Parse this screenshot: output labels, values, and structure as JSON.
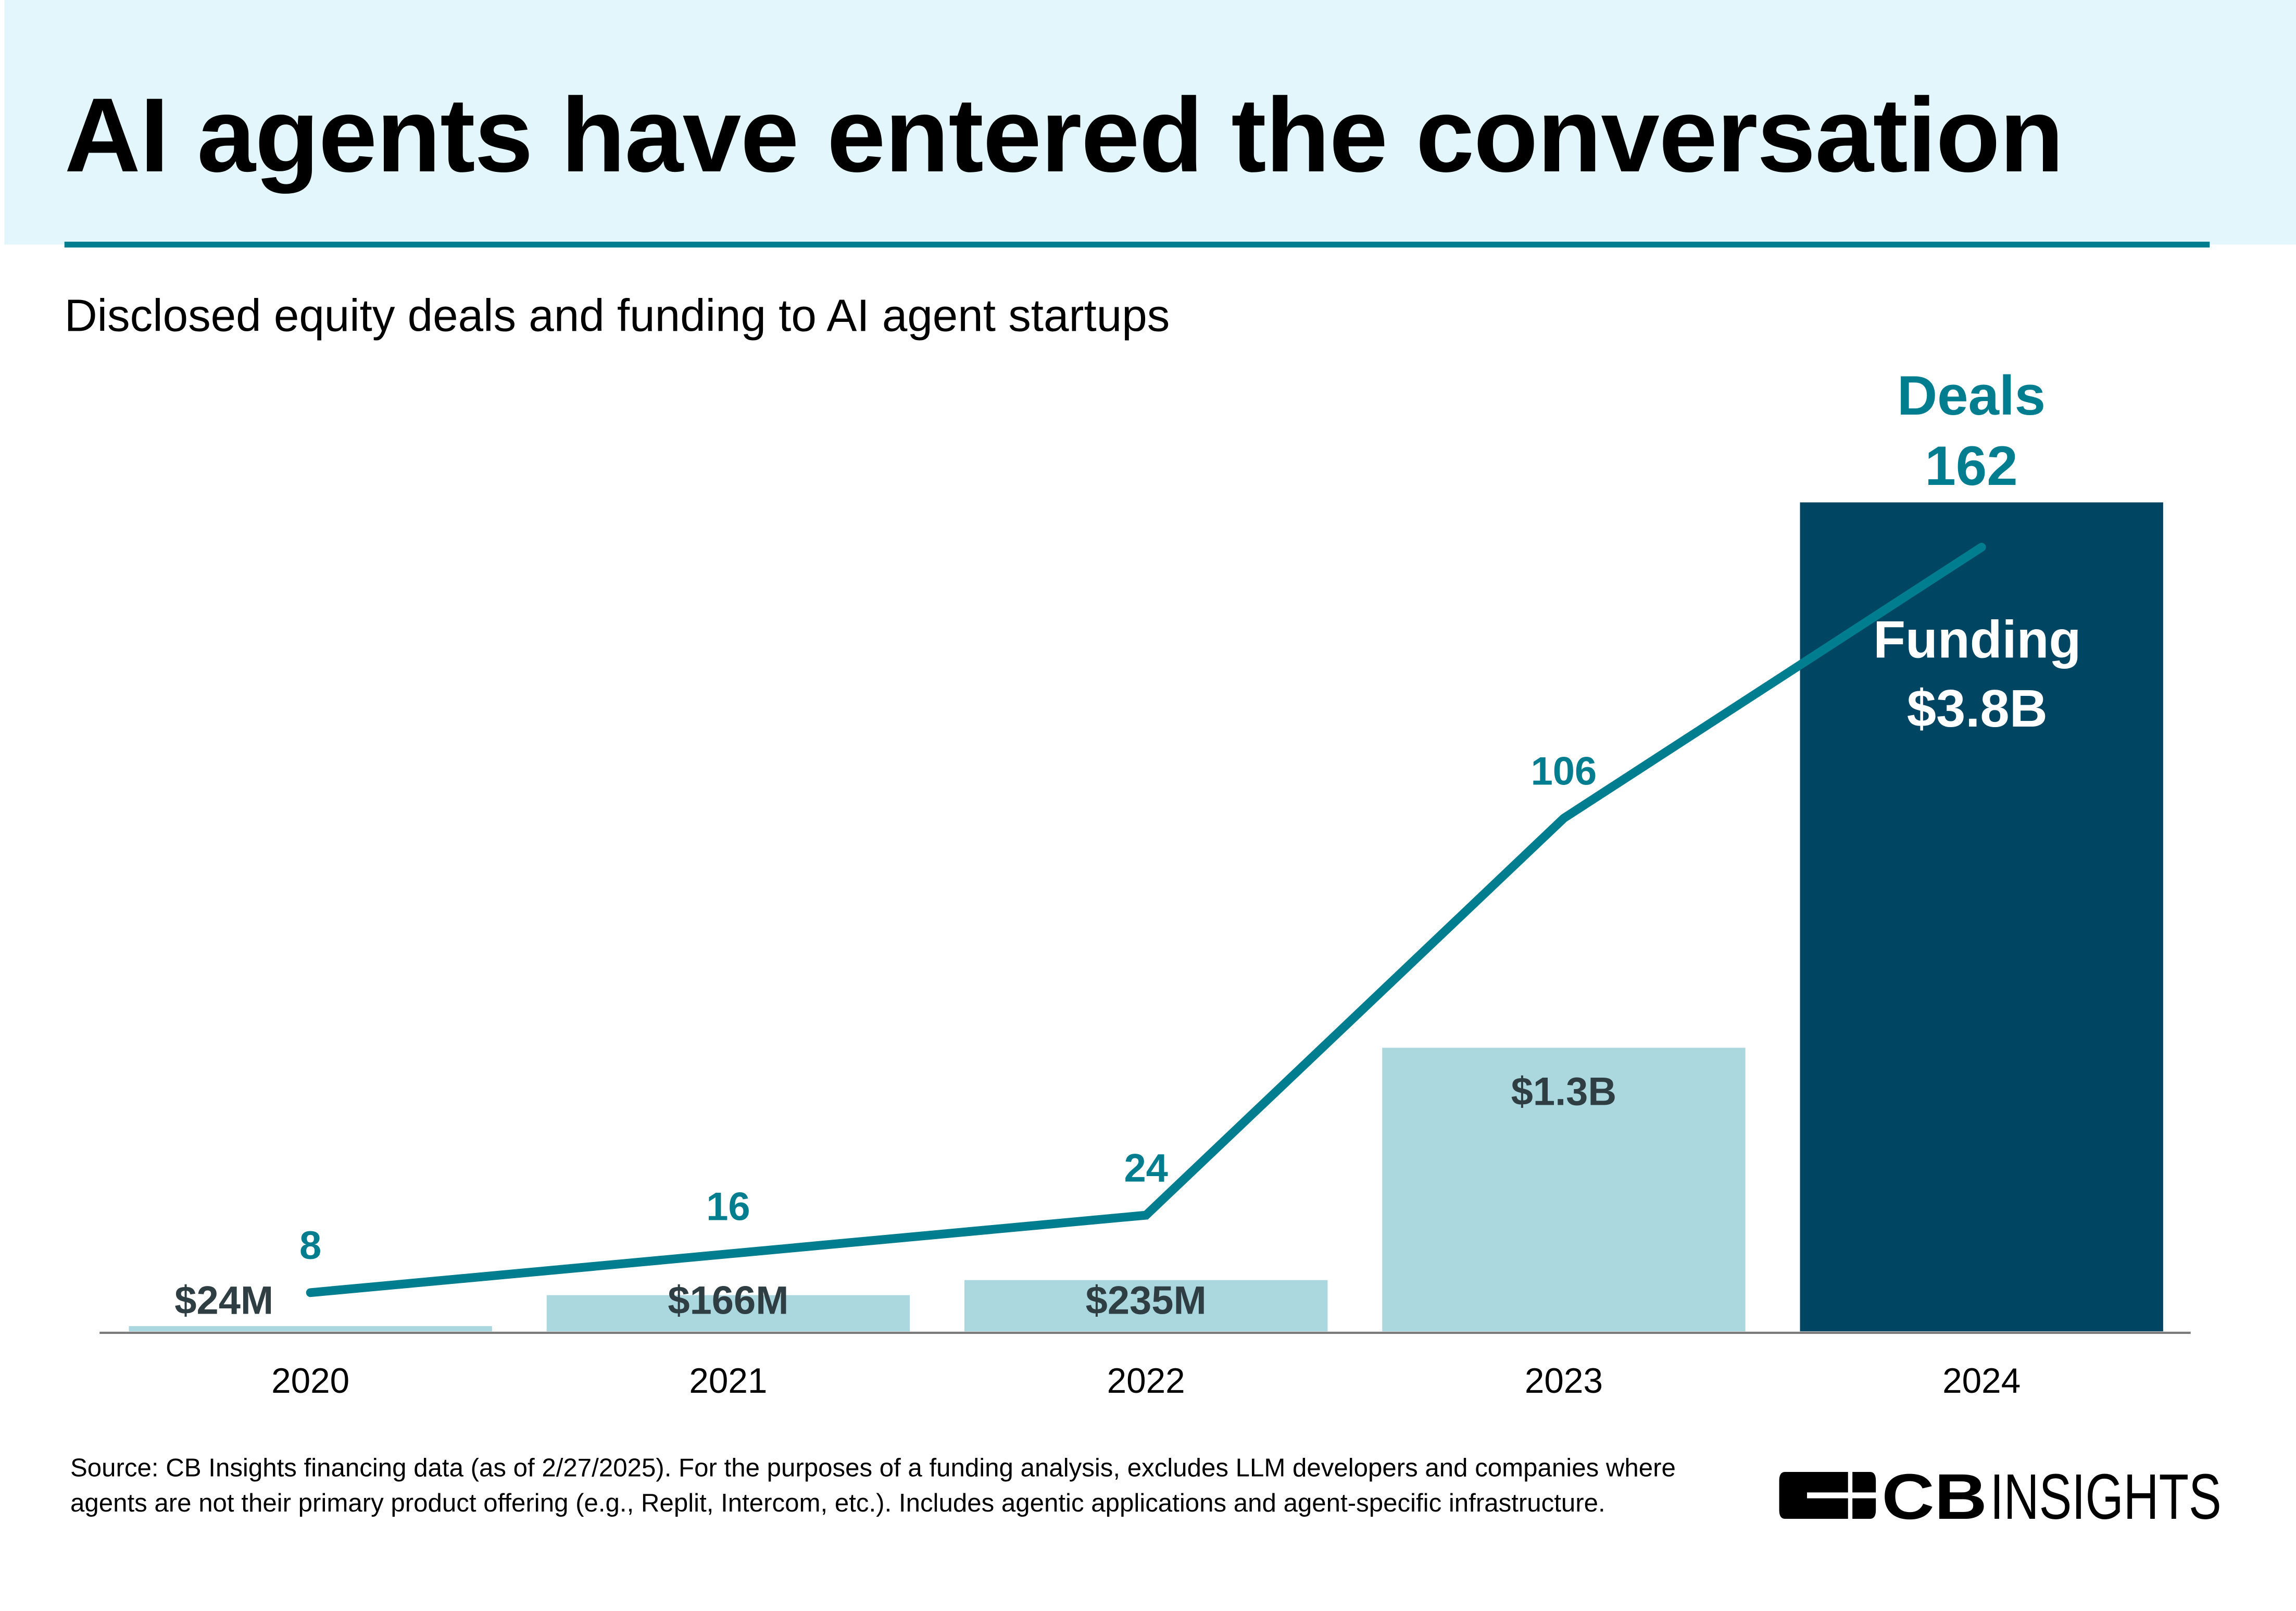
{
  "header": {
    "title": "AI agents have entered the conversation"
  },
  "subtitle": "Disclosed equity deals and funding to AI agent startups",
  "chart_data": {
    "type": "bar+line",
    "categories": [
      "2020",
      "2021",
      "2022",
      "2023",
      "2024"
    ],
    "series": [
      {
        "name": "Funding",
        "type": "bar",
        "values": [
          0.024,
          0.166,
          0.235,
          1.3,
          3.8
        ],
        "unit": "$B",
        "labels": [
          "$24M",
          "$166M",
          "$235M",
          "$1.3B",
          "$3.8B"
        ]
      },
      {
        "name": "Deals",
        "type": "line",
        "values": [
          8,
          16,
          24,
          106,
          162
        ],
        "labels": [
          "8",
          "16",
          "24",
          "106",
          "162"
        ]
      }
    ],
    "annotations": {
      "deals_title": "Deals",
      "funding_title": "Funding"
    },
    "colors": {
      "bar": "#abd7df",
      "bar_highlight": "#004562",
      "line": "#007d8f",
      "bar_label": "#2f3e42"
    }
  },
  "source": "Source: CB Insights financing data (as of 2/27/2025). For the purposes of a funding analysis, excludes LLM developers and companies where agents are not their primary product offering (e.g., Replit, Intercom, etc.). Includes agentic applications and agent-specific infrastructure.",
  "logo": {
    "text": "CBINSIGHTS"
  }
}
